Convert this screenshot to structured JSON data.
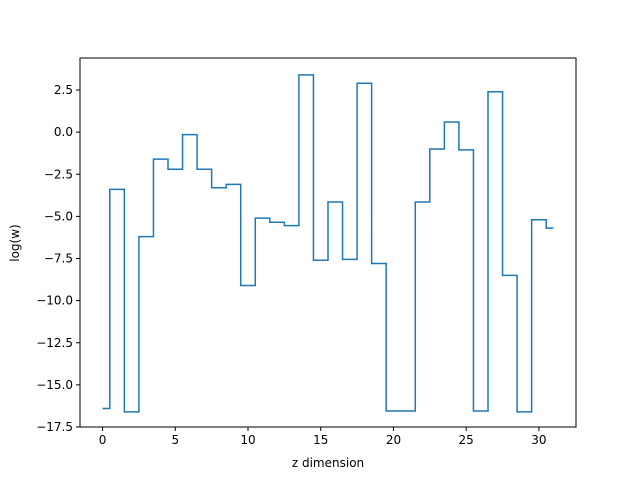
{
  "chart_data": {
    "type": "line",
    "drawstyle": "steps-mid",
    "title": "",
    "xlabel": "z dimension",
    "ylabel": "log(w)",
    "xlim": [
      -1.55,
      32.55
    ],
    "ylim": [
      -17.5,
      4.4
    ],
    "xticks": [
      0,
      5,
      10,
      15,
      20,
      25,
      30
    ],
    "yticks": [
      -17.5,
      -15.0,
      -12.5,
      -10.0,
      -7.5,
      -5.0,
      -2.5,
      0.0,
      2.5
    ],
    "ytick_labels": [
      "−17.5",
      "−15.0",
      "−12.5",
      "−10.0",
      "−7.5",
      "−5.0",
      "−2.5",
      "0.0",
      "2.5"
    ],
    "grid": false,
    "series": [
      {
        "color": "#1f77b4",
        "x": [
          0,
          1,
          2,
          3,
          4,
          5,
          6,
          7,
          8,
          9,
          10,
          11,
          12,
          13,
          14,
          15,
          16,
          17,
          18,
          19,
          20,
          21,
          22,
          23,
          24,
          25,
          26,
          27,
          28,
          29,
          30,
          31
        ],
        "y": [
          -16.4,
          -3.4,
          -16.6,
          -6.2,
          -1.6,
          -2.2,
          -0.15,
          -2.2,
          -3.3,
          -3.1,
          -9.1,
          -5.1,
          -5.35,
          -5.55,
          3.4,
          -7.6,
          -4.15,
          -7.55,
          2.9,
          -7.8,
          -16.55,
          -16.55,
          -4.15,
          -1.0,
          0.6,
          -1.05,
          -16.55,
          2.4,
          -8.5,
          -16.6,
          -5.2,
          -5.7
        ]
      }
    ]
  }
}
